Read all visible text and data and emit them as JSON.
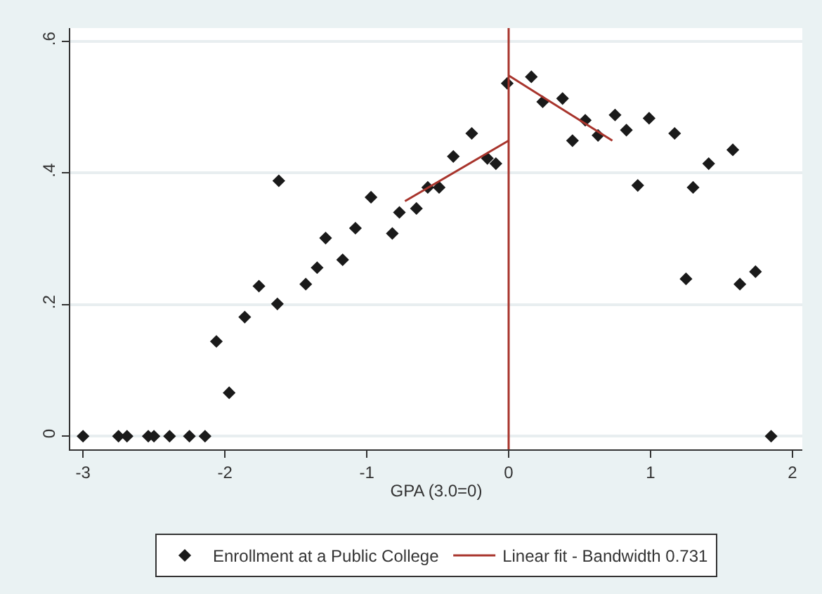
{
  "chart_data": {
    "type": "scatter",
    "xlabel": "GPA (3.0=0)",
    "grid": "y",
    "legend": "bottom",
    "xlim": [
      -3.09,
      2.07
    ],
    "xticks": [
      -3,
      -2,
      -1,
      0,
      1,
      2
    ],
    "ylim": [
      -0.02,
      0.62
    ],
    "yticks": [
      0,
      {
        "value": 0.2,
        "label": ".2"
      },
      {
        "value": 0.4,
        "label": ".4"
      },
      {
        "value": 0.6,
        "label": ".6"
      }
    ],
    "ref_lines": [
      {
        "axis": "x",
        "value": 0,
        "color": "#a8342c"
      }
    ],
    "series": [
      {
        "name": "Enrollment at a Public College",
        "marker": "diamond",
        "color": "#1a1a1a",
        "x": [
          -3.0,
          -2.75,
          -2.69,
          -2.54,
          -2.5,
          -2.39,
          -2.25,
          -2.14,
          -2.06,
          -1.97,
          -1.86,
          -1.76,
          -1.62,
          -1.63,
          -1.43,
          -1.35,
          -1.29,
          -1.17,
          -1.08,
          -0.97,
          -0.82,
          -0.77,
          -0.65,
          -0.57,
          -0.49,
          -0.39,
          -0.26,
          -0.15,
          -0.09,
          -0.01,
          0.16,
          0.24,
          0.38,
          0.45,
          0.54,
          0.63,
          0.75,
          0.83,
          0.91,
          0.99,
          1.17,
          1.25,
          1.3,
          1.41,
          1.58,
          1.63,
          1.74,
          1.85
        ],
        "values": [
          0,
          0,
          0,
          0,
          0,
          0,
          0,
          0,
          0.144,
          0.066,
          0.181,
          0.228,
          0.388,
          0.201,
          0.231,
          0.256,
          0.301,
          0.268,
          0.316,
          0.363,
          0.308,
          0.34,
          0.346,
          0.378,
          0.378,
          0.425,
          0.46,
          0.422,
          0.414,
          0.536,
          0.546,
          0.508,
          0.513,
          0.449,
          0.48,
          0.457,
          0.488,
          0.465,
          0.381,
          0.483,
          0.46,
          0.239,
          0.378,
          0.414,
          0.435,
          0.231,
          0.25,
          0
        ]
      },
      {
        "name": "Linear fit - Bandwidth 0.731",
        "type": "line",
        "marker": "none",
        "color": "#a8342c",
        "x": [
          -0.731,
          0
        ],
        "values": [
          0.357,
          0.449
        ]
      },
      {
        "type": "line",
        "marker": "none",
        "color": "#a8342c",
        "x": [
          0,
          0.731
        ],
        "values": [
          0.548,
          0.449
        ]
      }
    ]
  }
}
